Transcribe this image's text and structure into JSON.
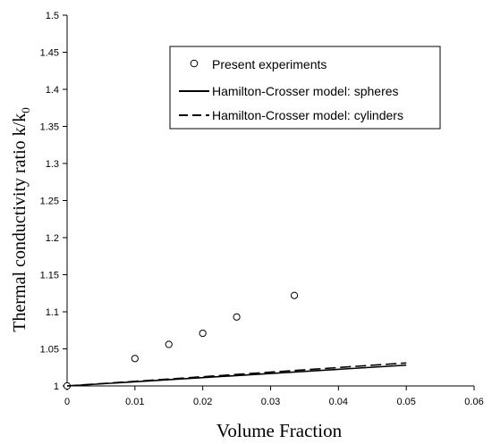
{
  "chart_data": {
    "type": "scatter",
    "title": "",
    "xlabel": "Volume Fraction",
    "ylabel": "Thermal conductivity ratio  k/k",
    "ylabel_subscript": "0",
    "xlim": [
      0,
      0.06
    ],
    "ylim": [
      1,
      1.5
    ],
    "x_ticks": [
      "0",
      "0.01",
      "0.02",
      "0.03",
      "0.04",
      "0.05",
      "0.06"
    ],
    "y_ticks": [
      "1",
      "1.05",
      "1.1",
      "1.15",
      "1.2",
      "1.25",
      "1.3",
      "1.35",
      "1.4",
      "1.45",
      "1.5"
    ],
    "grid": false,
    "legend_position": "top-right",
    "series": [
      {
        "name": "Present experiments",
        "style": "markers-open-circle",
        "x": [
          0,
          0.01,
          0.015,
          0.02,
          0.025,
          0.0335
        ],
        "y": [
          1.0,
          1.037,
          1.056,
          1.071,
          1.093,
          1.122
        ]
      },
      {
        "name": "Hamilton-Crosser model: spheres",
        "style": "solid-line",
        "x": [
          0,
          0.05
        ],
        "y": [
          1.0,
          1.028
        ]
      },
      {
        "name": "Hamilton-Crosser model: cylinders",
        "style": "dashed-line",
        "x": [
          0,
          0.05
        ],
        "y": [
          1.0,
          1.031
        ]
      }
    ]
  }
}
